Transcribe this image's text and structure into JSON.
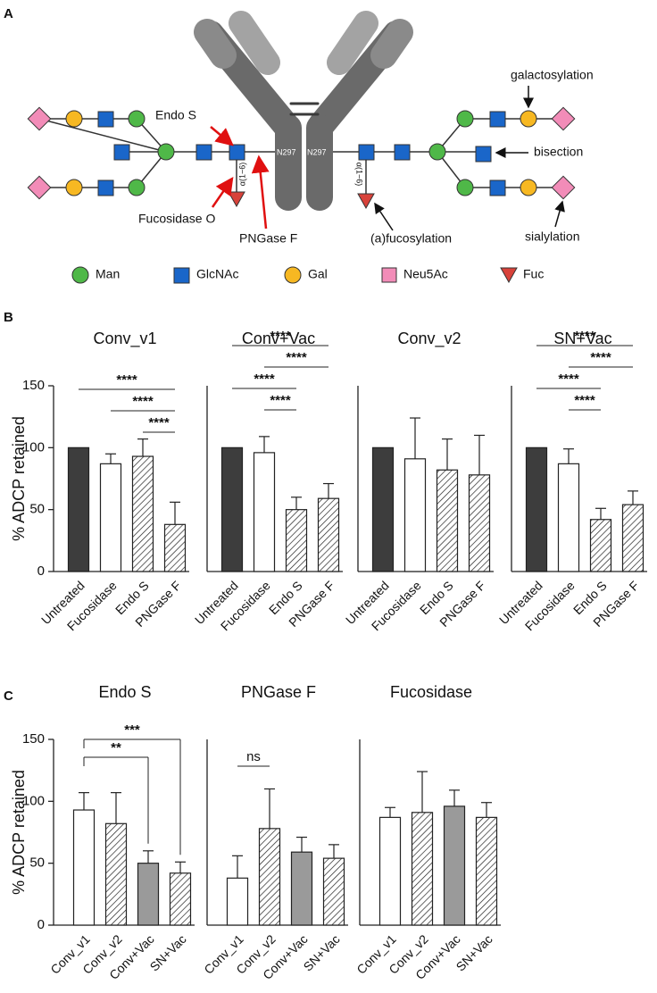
{
  "panel_labels": [
    "A",
    "B",
    "C"
  ],
  "panel_a": {
    "enzymes": [
      "Endo S",
      "Fucosidase O",
      "PNGase F"
    ],
    "features": [
      "galactosylation",
      "bisection",
      "(a)fucosylation",
      "sialylation"
    ],
    "site": "N297",
    "linkage": "α(1−6)",
    "legend": [
      "Man",
      "GlcNAc",
      "Gal",
      "Neu5Ac",
      "Fuc"
    ]
  },
  "chart_data": [
    {
      "type": "bar",
      "title": "Conv_v1",
      "ylabel": "% ADCP retained",
      "categories": [
        "Untreated",
        "Fucosidase",
        "Endo S",
        "PNGase F"
      ],
      "values": [
        100,
        87,
        93,
        38
      ],
      "errors": [
        null,
        8,
        14,
        18
      ],
      "colors": [
        "#3d3d3d",
        "#ffffff",
        "hatch",
        "hatch"
      ],
      "ylim": [
        0,
        150
      ],
      "yticks": [
        0,
        50,
        100,
        150
      ],
      "significance": [
        {
          "label": "****",
          "from": 0,
          "to": 3
        },
        {
          "label": "****",
          "from": 1,
          "to": 3
        },
        {
          "label": "****",
          "from": 2,
          "to": 3
        }
      ]
    },
    {
      "type": "bar",
      "title": "Conv+Vac",
      "categories": [
        "Untreated",
        "Fucosidase",
        "Endo S",
        "PNGase F"
      ],
      "values": [
        100,
        96,
        50,
        59
      ],
      "errors": [
        null,
        13,
        10,
        12
      ],
      "colors": [
        "#3d3d3d",
        "#ffffff",
        "hatch",
        "hatch"
      ],
      "ylim": [
        0,
        150
      ],
      "significance": [
        {
          "label": "****",
          "from": 0,
          "to": 3
        },
        {
          "label": "****",
          "from": 1,
          "to": 3
        },
        {
          "label": "****",
          "from": 0,
          "to": 2
        },
        {
          "label": "****",
          "from": 1,
          "to": 2
        }
      ]
    },
    {
      "type": "bar",
      "title": "Conv_v2",
      "categories": [
        "Untreated",
        "Fucosidase",
        "Endo S",
        "PNGase F"
      ],
      "values": [
        100,
        91,
        82,
        78
      ],
      "errors": [
        null,
        33,
        25,
        32
      ],
      "colors": [
        "#3d3d3d",
        "#ffffff",
        "hatch",
        "hatch"
      ],
      "ylim": [
        0,
        150
      ]
    },
    {
      "type": "bar",
      "title": "SN+Vac",
      "categories": [
        "Untreated",
        "Fucosidase",
        "Endo S",
        "PNGase F"
      ],
      "values": [
        100,
        87,
        42,
        54
      ],
      "errors": [
        null,
        12,
        9,
        11
      ],
      "colors": [
        "#3d3d3d",
        "#ffffff",
        "hatch",
        "hatch"
      ],
      "ylim": [
        0,
        150
      ],
      "significance": [
        {
          "label": "****",
          "from": 0,
          "to": 3
        },
        {
          "label": "****",
          "from": 1,
          "to": 3
        },
        {
          "label": "****",
          "from": 0,
          "to": 2
        },
        {
          "label": "****",
          "from": 1,
          "to": 2
        }
      ]
    },
    {
      "type": "bar",
      "title": "Endo S",
      "ylabel": "% ADCP retained",
      "categories": [
        "Conv_v1",
        "Conv_v2",
        "Conv+Vac",
        "SN+Vac"
      ],
      "values": [
        93,
        82,
        50,
        42
      ],
      "errors": [
        14,
        25,
        10,
        9
      ],
      "colors": [
        "#ffffff",
        "hatch",
        "#9a9a9a",
        "hatch"
      ],
      "ylim": [
        0,
        150
      ],
      "yticks": [
        0,
        50,
        100,
        150
      ],
      "significance": [
        {
          "label": "***",
          "from": 0,
          "to": 3
        },
        {
          "label": "**",
          "from": 0,
          "to": 2
        }
      ]
    },
    {
      "type": "bar",
      "title": "PNGase F",
      "categories": [
        "Conv_v1",
        "Conv_v2",
        "Conv+Vac",
        "SN+Vac"
      ],
      "values": [
        38,
        78,
        59,
        54
      ],
      "errors": [
        18,
        32,
        12,
        11
      ],
      "colors": [
        "#ffffff",
        "hatch",
        "#9a9a9a",
        "hatch"
      ],
      "ylim": [
        0,
        150
      ],
      "significance": [
        {
          "label": "ns",
          "from": 0,
          "to": 1
        }
      ]
    },
    {
      "type": "bar",
      "title": "Fucosidase",
      "categories": [
        "Conv_v1",
        "Conv_v2",
        "Conv+Vac",
        "SN+Vac"
      ],
      "values": [
        87,
        91,
        96,
        87
      ],
      "errors": [
        8,
        33,
        13,
        12
      ],
      "colors": [
        "#ffffff",
        "hatch",
        "#9a9a9a",
        "hatch"
      ],
      "ylim": [
        0,
        150
      ]
    }
  ]
}
